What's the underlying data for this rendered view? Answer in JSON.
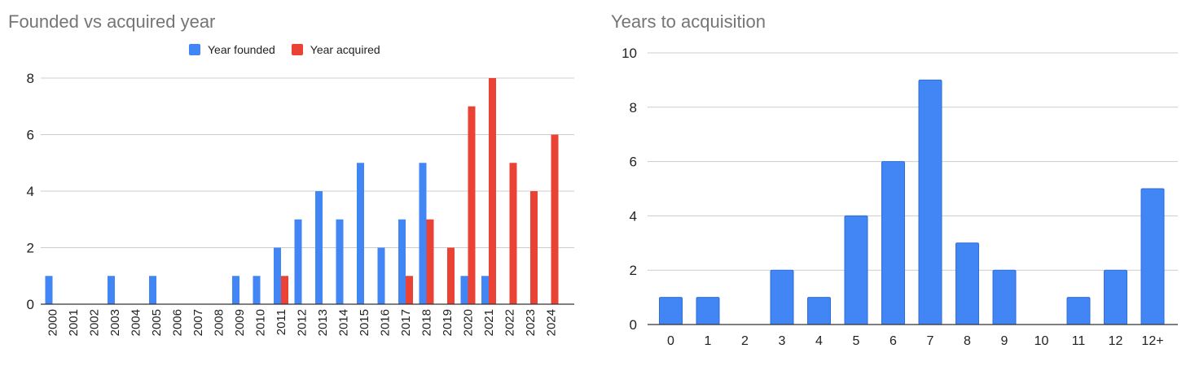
{
  "colors": {
    "founded": "#4285f4",
    "acquired": "#ea4335",
    "grid": "#cccccc",
    "axis": "#333333"
  },
  "chart_data": [
    {
      "type": "bar",
      "title": "Founded vs acquired year",
      "categories": [
        "2000",
        "2001",
        "2002",
        "2003",
        "2004",
        "2005",
        "2006",
        "2007",
        "2008",
        "2009",
        "2010",
        "2011",
        "2012",
        "2013",
        "2014",
        "2015",
        "2016",
        "2017",
        "2018",
        "2019",
        "2020",
        "2021",
        "2022",
        "2023",
        "2024"
      ],
      "series": [
        {
          "name": "Year founded",
          "values": [
            1,
            0,
            0,
            1,
            0,
            1,
            0,
            0,
            0,
            1,
            1,
            2,
            3,
            4,
            3,
            5,
            2,
            3,
            5,
            0,
            1,
            1,
            0,
            0,
            0
          ]
        },
        {
          "name": "Year acquired",
          "values": [
            0,
            0,
            0,
            0,
            0,
            0,
            0,
            0,
            0,
            0,
            0,
            1,
            0,
            0,
            0,
            0,
            0,
            1,
            3,
            2,
            7,
            8,
            5,
            4,
            6
          ]
        }
      ],
      "ylim": [
        0,
        8
      ],
      "yticks": [
        0,
        2,
        4,
        6,
        8
      ],
      "legend": "top",
      "grid": true
    },
    {
      "type": "bar",
      "title": "Years to acquisition",
      "categories": [
        "0",
        "1",
        "2",
        "3",
        "4",
        "5",
        "6",
        "7",
        "8",
        "9",
        "10",
        "11",
        "12",
        "12+"
      ],
      "values": [
        1,
        1,
        0,
        2,
        1,
        4,
        6,
        9,
        3,
        2,
        0,
        1,
        2,
        5
      ],
      "ylim": [
        0,
        10
      ],
      "yticks": [
        0,
        2,
        4,
        6,
        8,
        10
      ],
      "grid": true
    }
  ]
}
